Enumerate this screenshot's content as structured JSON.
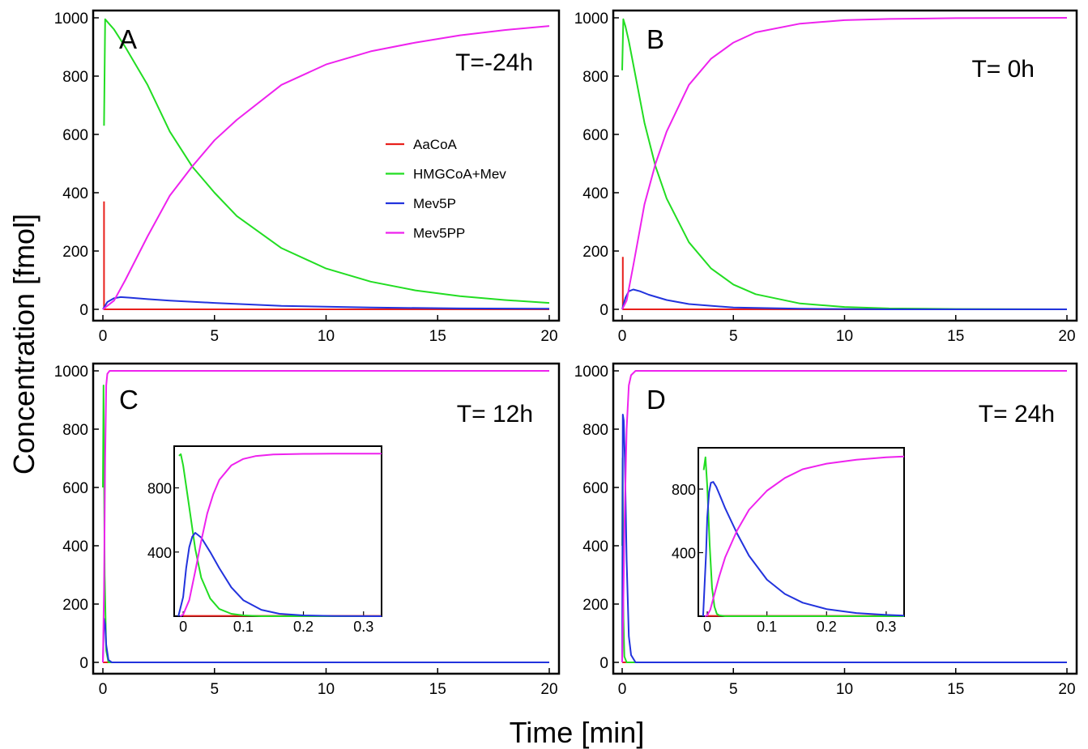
{
  "figure": {
    "ylabel": "Concentration [fmol]",
    "xlabel": "Time [min]",
    "legend": {
      "placement": "inside panel A, center-right",
      "entries": [
        {
          "label": "AaCoA",
          "color": "#e8201c"
        },
        {
          "label": "HMGCoA+Mev",
          "color": "#22dd22"
        },
        {
          "label": "Mev5P",
          "color": "#2233dd"
        },
        {
          "label": "Mev5PP",
          "color": "#ee22ee"
        }
      ]
    }
  },
  "chart_data": [
    {
      "type": "line",
      "panel": "A",
      "annotation": "T=-24h",
      "xlim": [
        0,
        20
      ],
      "ylim": [
        0,
        1000
      ],
      "xticks": [
        0,
        5,
        10,
        15,
        20
      ],
      "yticks": [
        0,
        200,
        400,
        600,
        800,
        1000
      ],
      "grid": false,
      "series": [
        {
          "name": "AaCoA",
          "color": "#e8201c",
          "x": [
            0.05,
            0.05,
            0.08,
            20
          ],
          "y": [
            370,
            0,
            0,
            0
          ]
        },
        {
          "name": "HMGCoA+Mev",
          "color": "#22dd22",
          "x": [
            0.05,
            0.1,
            0.5,
            1,
            2,
            3,
            4,
            5,
            6,
            8,
            10,
            12,
            14,
            16,
            18,
            20
          ],
          "y": [
            630,
            995,
            960,
            900,
            770,
            610,
            490,
            400,
            320,
            210,
            140,
            95,
            65,
            45,
            32,
            22
          ]
        },
        {
          "name": "Mev5P",
          "color": "#2233dd",
          "x": [
            0,
            0.2,
            0.5,
            0.8,
            1.2,
            2,
            3,
            5,
            8,
            12,
            16,
            20
          ],
          "y": [
            0,
            25,
            38,
            42,
            40,
            35,
            30,
            22,
            12,
            6,
            3,
            2
          ]
        },
        {
          "name": "Mev5PP",
          "color": "#ee22ee",
          "x": [
            0,
            0.5,
            1,
            2,
            3,
            4,
            5,
            6,
            8,
            10,
            12,
            14,
            16,
            18,
            20
          ],
          "y": [
            0,
            30,
            100,
            250,
            390,
            490,
            580,
            650,
            770,
            840,
            885,
            915,
            940,
            958,
            972
          ]
        }
      ]
    },
    {
      "type": "line",
      "panel": "B",
      "annotation": "T= 0h",
      "xlim": [
        0,
        20
      ],
      "ylim": [
        0,
        1000
      ],
      "xticks": [
        0,
        5,
        10,
        15,
        20
      ],
      "yticks": [
        0,
        200,
        400,
        600,
        800,
        1000
      ],
      "grid": false,
      "series": [
        {
          "name": "AaCoA",
          "color": "#e8201c",
          "x": [
            0.03,
            0.03,
            0.06,
            20
          ],
          "y": [
            180,
            0,
            0,
            0
          ]
        },
        {
          "name": "HMGCoA+Mev",
          "color": "#22dd22",
          "x": [
            0,
            0.05,
            0.15,
            0.3,
            0.6,
            1,
            1.5,
            2,
            3,
            4,
            5,
            6,
            8,
            10,
            12,
            15,
            20
          ],
          "y": [
            820,
            995,
            970,
            920,
            800,
            640,
            490,
            380,
            230,
            140,
            85,
            52,
            20,
            8,
            3,
            1,
            0
          ]
        },
        {
          "name": "Mev5P",
          "color": "#2233dd",
          "x": [
            0,
            0.15,
            0.3,
            0.5,
            0.8,
            1.2,
            2,
            3,
            5,
            8,
            12,
            20
          ],
          "y": [
            0,
            40,
            62,
            68,
            62,
            50,
            32,
            18,
            6,
            2,
            0,
            0
          ]
        },
        {
          "name": "Mev5PP",
          "color": "#ee22ee",
          "x": [
            0,
            0.2,
            0.5,
            1,
            1.5,
            2,
            3,
            4,
            5,
            6,
            8,
            10,
            12,
            15,
            20
          ],
          "y": [
            0,
            30,
            150,
            360,
            500,
            610,
            770,
            860,
            915,
            950,
            980,
            992,
            996,
            999,
            1000
          ]
        }
      ]
    },
    {
      "type": "line",
      "panel": "C",
      "annotation": "T= 12h",
      "xlim": [
        0,
        20
      ],
      "ylim": [
        0,
        1000
      ],
      "xticks": [
        0,
        5,
        10,
        15,
        20
      ],
      "yticks": [
        0,
        200,
        400,
        600,
        800,
        1000
      ],
      "grid": false,
      "series": [
        {
          "name": "AaCoA",
          "color": "#e8201c",
          "x": [
            0,
            0.02,
            20
          ],
          "y": [
            0,
            0,
            0
          ]
        },
        {
          "name": "HMGCoA+Mev",
          "color": "#22dd22",
          "x": [
            0,
            0.03,
            0.08,
            0.15,
            0.25,
            20
          ],
          "y": [
            600,
            950,
            300,
            40,
            0,
            0
          ]
        },
        {
          "name": "Mev5P",
          "color": "#2233dd",
          "x": [
            0,
            0.05,
            0.1,
            0.15,
            0.25,
            0.4,
            20
          ],
          "y": [
            0,
            150,
            130,
            60,
            8,
            0,
            0
          ]
        },
        {
          "name": "Mev5PP",
          "color": "#ee22ee",
          "x": [
            0,
            0.05,
            0.1,
            0.15,
            0.2,
            0.3,
            20
          ],
          "y": [
            0,
            250,
            700,
            950,
            990,
            1000,
            1000
          ]
        }
      ],
      "inset": {
        "xlim": [
          -0.015,
          0.33
        ],
        "ylim": [
          0,
          1060
        ],
        "xticks": [
          0,
          0.1,
          0.2,
          0.3
        ],
        "xtick_labels": [
          "0",
          "0.1",
          "0.2",
          "0.3"
        ],
        "yticks": [
          400,
          800
        ],
        "series": [
          {
            "name": "AaCoA",
            "color": "#e8201c",
            "x": [
              0,
              0.33
            ],
            "y": [
              2,
              2
            ]
          },
          {
            "name": "HMGCoA+Mev",
            "color": "#22dd22",
            "x": [
              -0.007,
              -0.004,
              0,
              0.01,
              0.02,
              0.03,
              0.045,
              0.06,
              0.08,
              0.1,
              0.13,
              0.33
            ],
            "y": [
              1000,
              1010,
              940,
              680,
              420,
              240,
              110,
              45,
              15,
              5,
              0,
              0
            ]
          },
          {
            "name": "Mev5P",
            "color": "#2233dd",
            "x": [
              -0.008,
              0,
              0.005,
              0.01,
              0.015,
              0.02,
              0.03,
              0.045,
              0.06,
              0.08,
              0.1,
              0.13,
              0.16,
              0.2,
              0.25,
              0.33
            ],
            "y": [
              0,
              120,
              300,
              430,
              495,
              520,
              490,
              400,
              300,
              180,
              100,
              40,
              15,
              5,
              1,
              0
            ]
          },
          {
            "name": "Mev5PP",
            "color": "#ee22ee",
            "x": [
              -0.005,
              0,
              0.01,
              0.02,
              0.03,
              0.04,
              0.05,
              0.06,
              0.08,
              0.1,
              0.12,
              0.15,
              0.2,
              0.25,
              0.3,
              0.33
            ],
            "y": [
              0,
              10,
              100,
              280,
              470,
              640,
              760,
              850,
              940,
              980,
              998,
              1008,
              1012,
              1013,
              1013,
              1013
            ]
          }
        ]
      }
    },
    {
      "type": "line",
      "panel": "D",
      "annotation": "T= 24h",
      "xlim": [
        0,
        20
      ],
      "ylim": [
        0,
        1000
      ],
      "xticks": [
        0,
        5,
        10,
        15,
        20
      ],
      "yticks": [
        0,
        200,
        400,
        600,
        800,
        1000
      ],
      "grid": false,
      "series": [
        {
          "name": "AaCoA",
          "color": "#e8201c",
          "x": [
            0,
            0.02,
            20
          ],
          "y": [
            0,
            0,
            0
          ]
        },
        {
          "name": "HMGCoA+Mev",
          "color": "#22dd22",
          "x": [
            0,
            0.02,
            0.06,
            0.1,
            0.2,
            20
          ],
          "y": [
            400,
            700,
            150,
            20,
            0,
            0
          ]
        },
        {
          "name": "Mev5P",
          "color": "#2233dd",
          "x": [
            0,
            0.03,
            0.07,
            0.12,
            0.2,
            0.3,
            0.4,
            0.6,
            20
          ],
          "y": [
            0,
            850,
            830,
            700,
            350,
            90,
            25,
            0,
            0
          ]
        },
        {
          "name": "Mev5PP",
          "color": "#ee22ee",
          "x": [
            0,
            0.05,
            0.1,
            0.2,
            0.3,
            0.4,
            0.6,
            20
          ],
          "y": [
            0,
            200,
            450,
            800,
            950,
            985,
            1000,
            1000
          ]
        }
      ],
      "inset": {
        "xlim": [
          -0.015,
          0.33
        ],
        "ylim": [
          0,
          1060
        ],
        "xticks": [
          0,
          0.1,
          0.2,
          0.3
        ],
        "xtick_labels": [
          "0",
          "0.1",
          "0.2",
          "0.3"
        ],
        "yticks": [
          400,
          800
        ],
        "series": [
          {
            "name": "AaCoA",
            "color": "#e8201c",
            "x": [
              0,
              0.33
            ],
            "y": [
              2,
              2
            ]
          },
          {
            "name": "HMGCoA+Mev",
            "color": "#22dd22",
            "x": [
              -0.006,
              -0.003,
              0,
              0.004,
              0.008,
              0.012,
              0.016,
              0.02,
              0.03,
              0.33
            ],
            "y": [
              920,
              1000,
              820,
              450,
              180,
              60,
              15,
              5,
              0,
              0
            ]
          },
          {
            "name": "Mev5P",
            "color": "#2233dd",
            "x": [
              -0.007,
              -0.002,
              0,
              0.003,
              0.006,
              0.01,
              0.015,
              0.02,
              0.03,
              0.05,
              0.07,
              0.1,
              0.13,
              0.16,
              0.2,
              0.25,
              0.3,
              0.33
            ],
            "y": [
              0,
              400,
              620,
              780,
              840,
              845,
              815,
              770,
              680,
              520,
              380,
              230,
              140,
              85,
              45,
              20,
              8,
              4
            ]
          },
          {
            "name": "Mev5PP",
            "color": "#ee22ee",
            "x": [
              -0.004,
              0,
              0.005,
              0.01,
              0.02,
              0.03,
              0.05,
              0.07,
              0.1,
              0.13,
              0.16,
              0.2,
              0.25,
              0.3,
              0.33
            ],
            "y": [
              0,
              5,
              40,
              110,
              250,
              370,
              540,
              670,
              790,
              870,
              925,
              960,
              985,
              1000,
              1005
            ]
          }
        ]
      }
    }
  ]
}
